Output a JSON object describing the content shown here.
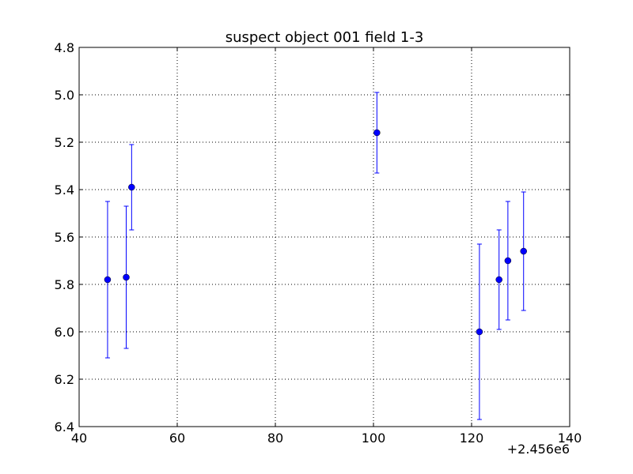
{
  "chart_data": {
    "type": "scatter",
    "title": "suspect object 001 field 1-3",
    "xlabel": "",
    "ylabel": "",
    "x_offset_label": "+2.456e6",
    "xlim": [
      40,
      140
    ],
    "ylim": [
      4.8,
      6.4
    ],
    "y_inverted": true,
    "grid": true,
    "legend": "none",
    "x_ticks": [
      "40",
      "60",
      "80",
      "100",
      "120",
      "140"
    ],
    "y_ticks": [
      "4.8",
      "5.0",
      "5.2",
      "5.4",
      "5.6",
      "5.8",
      "6.0",
      "6.2",
      "6.4"
    ],
    "series": [
      {
        "marker": "circle",
        "error_bars": "y",
        "points": [
          {
            "x": 45.8,
            "y": 5.78,
            "yerr": 0.33
          },
          {
            "x": 49.6,
            "y": 5.77,
            "yerr": 0.3
          },
          {
            "x": 50.7,
            "y": 5.39,
            "yerr": 0.18
          },
          {
            "x": 100.7,
            "y": 5.16,
            "yerr": 0.17
          },
          {
            "x": 121.6,
            "y": 6.0,
            "yerr": 0.37
          },
          {
            "x": 125.6,
            "y": 5.78,
            "yerr": 0.21
          },
          {
            "x": 127.4,
            "y": 5.7,
            "yerr": 0.25
          },
          {
            "x": 130.6,
            "y": 5.66,
            "yerr": 0.25
          }
        ]
      }
    ]
  },
  "colors": {
    "points": "#0000ff",
    "errorbars": "#0000ff",
    "grid": "#000000",
    "axes": "#000000"
  }
}
